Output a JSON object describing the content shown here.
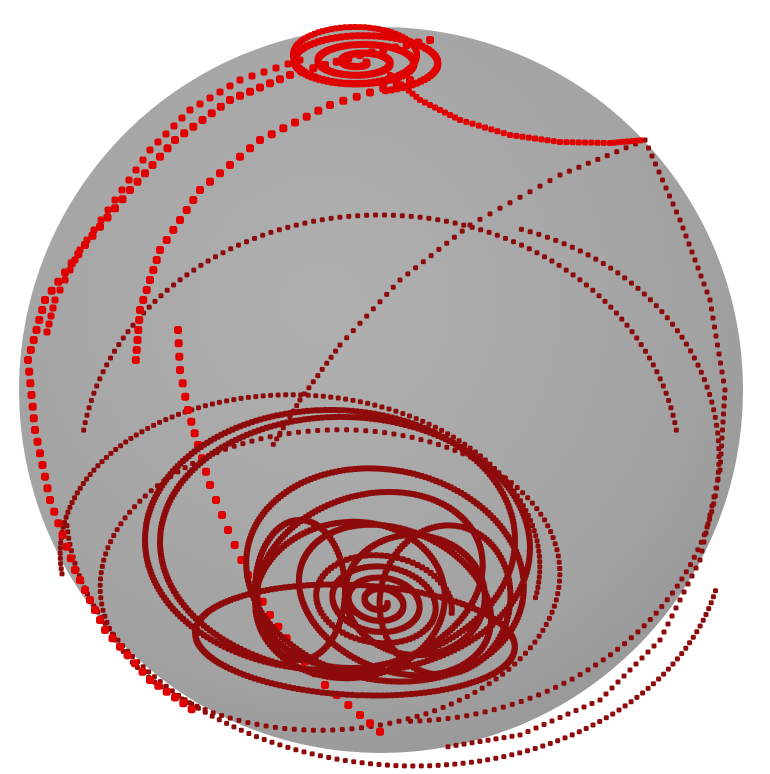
{
  "scene": {
    "subject": "sphere-with-trajectory-dots",
    "colors": {
      "background": "#ffffff",
      "sphere_fill": "#a4a4a4",
      "sphere_shade": "#8f8f8f",
      "dot_bright": "#e00000",
      "dot_dark": "#8e0b0b"
    }
  }
}
